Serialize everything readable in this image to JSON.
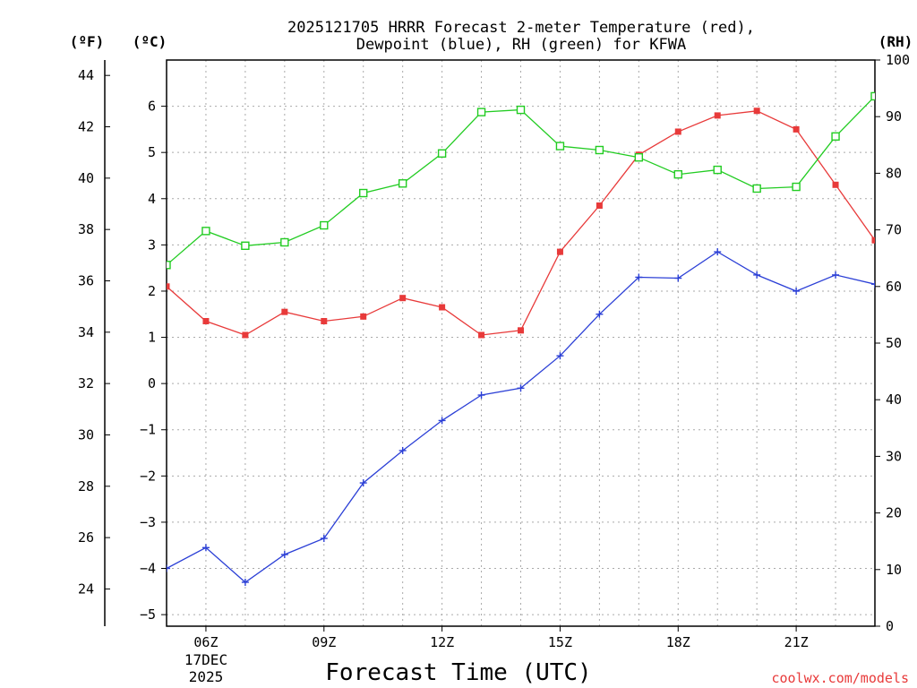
{
  "chart_data": {
    "type": "line",
    "title_line1": "2025121705 HRRR Forecast 2-meter Temperature (red),",
    "title_line2": "Dewpoint (blue), RH (green) for KFWA",
    "xlabel": "Forecast Time (UTC)",
    "date_label_line1": "17DEC",
    "date_label_line2": "2025",
    "watermark": "coolwx.com/models",
    "unit_f": "(ºF)",
    "unit_c": "(ºC)",
    "unit_rh": "(RH)",
    "x_hours": [
      5,
      6,
      7,
      8,
      9,
      10,
      11,
      12,
      13,
      14,
      15,
      16,
      17,
      18,
      19,
      20,
      21,
      22,
      23
    ],
    "x_ticks": [
      {
        "h": 6,
        "label": "06Z"
      },
      {
        "h": 9,
        "label": "09Z"
      },
      {
        "h": 12,
        "label": "12Z"
      },
      {
        "h": 15,
        "label": "15Z"
      },
      {
        "h": 18,
        "label": "18Z"
      },
      {
        "h": 21,
        "label": "21Z"
      }
    ],
    "xlim": [
      5,
      23
    ],
    "ylim_c": [
      -5.25,
      7.0
    ],
    "yticks_c": [
      -5,
      -4,
      -3,
      -2,
      -1,
      0,
      1,
      2,
      3,
      4,
      5,
      6
    ],
    "yticks_f": [
      24,
      26,
      28,
      30,
      32,
      34,
      36,
      38,
      40,
      42,
      44
    ],
    "ylim_rh": [
      0,
      100
    ],
    "yticks_rh": [
      0,
      10,
      20,
      30,
      40,
      50,
      60,
      70,
      80,
      90,
      100
    ],
    "series": [
      {
        "name": "Temperature",
        "color": "#e83a3a",
        "axis": "c",
        "marker": "square-filled",
        "values": [
          2.1,
          1.35,
          1.05,
          1.55,
          1.35,
          1.45,
          1.85,
          1.65,
          1.05,
          1.15,
          2.85,
          3.85,
          4.95,
          5.45,
          5.8,
          5.9,
          5.5,
          4.3,
          3.1
        ]
      },
      {
        "name": "Dewpoint",
        "color": "#2b3fd6",
        "axis": "c",
        "marker": "plus",
        "values": [
          -4.0,
          -3.55,
          -4.3,
          -3.7,
          -3.35,
          -2.15,
          -1.45,
          -0.8,
          -0.25,
          -0.1,
          0.6,
          1.5,
          2.3,
          2.28,
          2.85,
          2.35,
          2.0,
          2.35,
          2.15
        ]
      },
      {
        "name": "RH",
        "color": "#22cc22",
        "axis": "rh",
        "marker": "square-open",
        "values": [
          63.8,
          69.8,
          67.2,
          67.8,
          70.8,
          76.5,
          78.2,
          83.5,
          90.8,
          91.2,
          84.8,
          84.1,
          82.8,
          79.8,
          80.6,
          77.3,
          77.6,
          86.5,
          93.6
        ]
      }
    ]
  }
}
